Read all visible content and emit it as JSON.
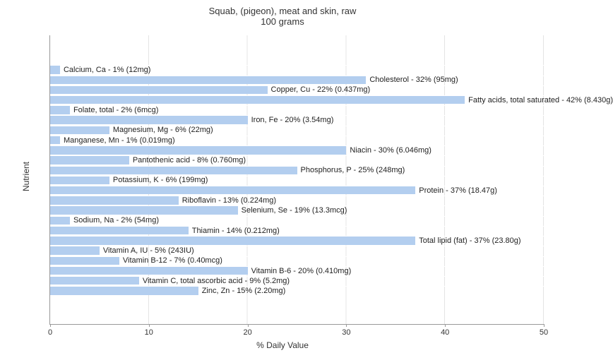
{
  "title_line1": "Squab, (pigeon), meat and skin, raw",
  "title_line2": "100 grams",
  "ylabel": "Nutrient",
  "xlabel": "% Daily Value",
  "chart": {
    "type": "bar",
    "orientation": "horizontal",
    "xlim": [
      0,
      50
    ],
    "xticks": [
      0,
      10,
      20,
      30,
      40,
      50
    ],
    "bar_color": "#b3ceef",
    "background_color": "#ffffff",
    "grid_color": "#e4e4e4",
    "label_fontsize": 11,
    "title_fontsize": 13,
    "axis_label_fontsize": 12,
    "bars": [
      {
        "label": "Calcium, Ca - 1% (12mg)",
        "value": 1
      },
      {
        "label": "Cholesterol - 32% (95mg)",
        "value": 32
      },
      {
        "label": "Copper, Cu - 22% (0.437mg)",
        "value": 22
      },
      {
        "label": "Fatty acids, total saturated - 42% (8.430g)",
        "value": 42
      },
      {
        "label": "Folate, total - 2% (6mcg)",
        "value": 2
      },
      {
        "label": "Iron, Fe - 20% (3.54mg)",
        "value": 20
      },
      {
        "label": "Magnesium, Mg - 6% (22mg)",
        "value": 6
      },
      {
        "label": "Manganese, Mn - 1% (0.019mg)",
        "value": 1
      },
      {
        "label": "Niacin - 30% (6.046mg)",
        "value": 30
      },
      {
        "label": "Pantothenic acid - 8% (0.760mg)",
        "value": 8
      },
      {
        "label": "Phosphorus, P - 25% (248mg)",
        "value": 25
      },
      {
        "label": "Potassium, K - 6% (199mg)",
        "value": 6
      },
      {
        "label": "Protein - 37% (18.47g)",
        "value": 37
      },
      {
        "label": "Riboflavin - 13% (0.224mg)",
        "value": 13
      },
      {
        "label": "Selenium, Se - 19% (13.3mcg)",
        "value": 19
      },
      {
        "label": "Sodium, Na - 2% (54mg)",
        "value": 2
      },
      {
        "label": "Thiamin - 14% (0.212mg)",
        "value": 14
      },
      {
        "label": "Total lipid (fat) - 37% (23.80g)",
        "value": 37
      },
      {
        "label": "Vitamin A, IU - 5% (243IU)",
        "value": 5
      },
      {
        "label": "Vitamin B-12 - 7% (0.40mcg)",
        "value": 7
      },
      {
        "label": "Vitamin B-6 - 20% (0.410mg)",
        "value": 20
      },
      {
        "label": "Vitamin C, total ascorbic acid - 9% (5.2mg)",
        "value": 9
      },
      {
        "label": "Zinc, Zn - 15% (2.20mg)",
        "value": 15
      }
    ]
  }
}
